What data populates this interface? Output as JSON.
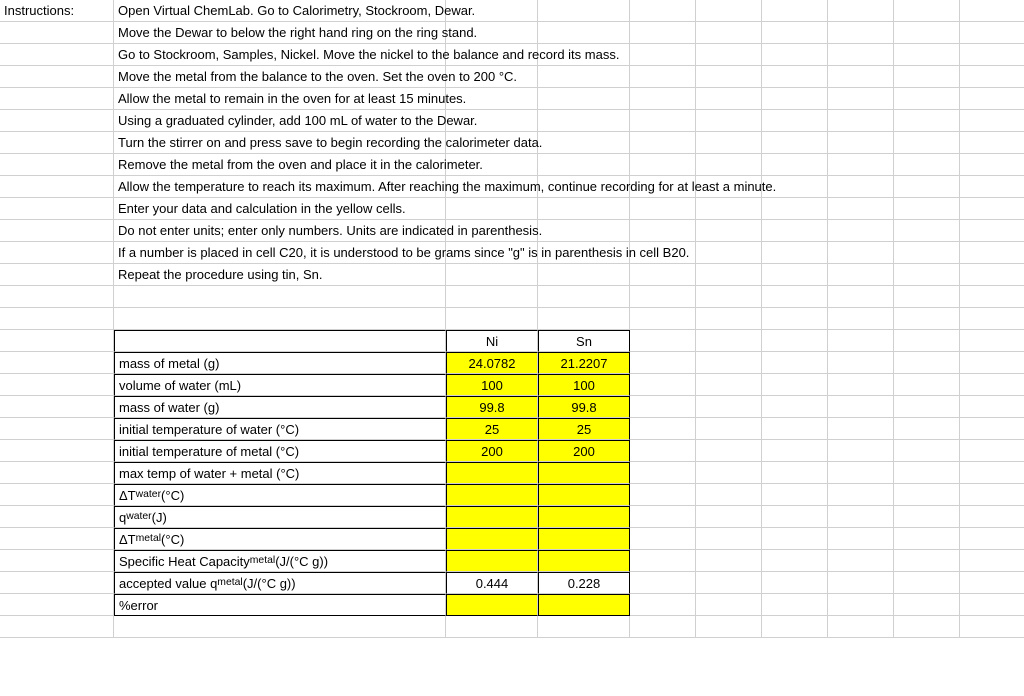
{
  "labels": {
    "instructions": "Instructions:"
  },
  "instructions": [
    "Open Virtual ChemLab.  Go to Calorimetry, Stockroom, Dewar.",
    "Move the Dewar to below the right hand ring on the ring stand.",
    "Go to Stockroom, Samples, Nickel.  Move the nickel to the balance and record its mass.",
    "Move the metal from the balance to the oven.  Set the oven to 200 °C.",
    "Allow the metal to remain in the oven for at least 15 minutes.",
    "Using a graduated cylinder, add 100 mL of water to the Dewar.",
    "Turn the stirrer on and press save to begin recording the calorimeter data.",
    "Remove the metal from the oven and place it in the calorimeter.",
    "Allow the temperature to reach its maximum.  After reaching the maximum, continue recording for at least a minute.",
    "Enter your data and calculation in the yellow cells.",
    "Do not enter units; enter only numbers.  Units are indicated in parenthesis.",
    "If a number is placed in cell C20, it is understood to be grams since \"g\" is in parenthesis in cell B20.",
    "Repeat the procedure using tin, Sn."
  ],
  "table": {
    "headers": {
      "col1": "Ni",
      "col2": "Sn"
    },
    "rows": [
      {
        "label_html": "mass of metal (g)",
        "ni": "24.0782",
        "sn": "21.2207",
        "ni_yellow": true,
        "sn_yellow": true
      },
      {
        "label_html": "volume of water (mL)",
        "ni": "100",
        "sn": "100",
        "ni_yellow": true,
        "sn_yellow": true
      },
      {
        "label_html": "mass of water (g)",
        "ni": "99.8",
        "sn": "99.8",
        "ni_yellow": true,
        "sn_yellow": true
      },
      {
        "label_html": "initial temperature of water (°C)",
        "ni": "25",
        "sn": "25",
        "ni_yellow": true,
        "sn_yellow": true
      },
      {
        "label_html": "initial temperature of metal (°C)",
        "ni": "200",
        "sn": "200",
        "ni_yellow": true,
        "sn_yellow": true
      },
      {
        "label_html": "max temp of water + metal (°C)",
        "ni": "",
        "sn": "",
        "ni_yellow": true,
        "sn_yellow": true
      },
      {
        "label_html": "ΔT<sub>water</sub> (°C)",
        "ni": "",
        "sn": "",
        "ni_yellow": true,
        "sn_yellow": true
      },
      {
        "label_html": "q<sub>water</sub> (J)",
        "ni": "",
        "sn": "",
        "ni_yellow": true,
        "sn_yellow": true
      },
      {
        "label_html": "ΔT<sub>metal</sub> (°C)",
        "ni": "",
        "sn": "",
        "ni_yellow": true,
        "sn_yellow": true
      },
      {
        "label_html": "Specific Heat Capacity<sub>metal</sub> (J/(°C g))",
        "ni": "",
        "sn": "",
        "ni_yellow": true,
        "sn_yellow": true
      },
      {
        "label_html": "accepted value q<sub>metal</sub> (J/(°C g))",
        "ni": "0.444",
        "sn": "0.228",
        "ni_yellow": false,
        "sn_yellow": false
      },
      {
        "label_html": "%error",
        "ni": "",
        "sn": "",
        "ni_yellow": true,
        "sn_yellow": true
      }
    ]
  },
  "colors": {
    "yellow": "#ffff00",
    "grid": "#d0d0d0",
    "black": "#000000"
  }
}
